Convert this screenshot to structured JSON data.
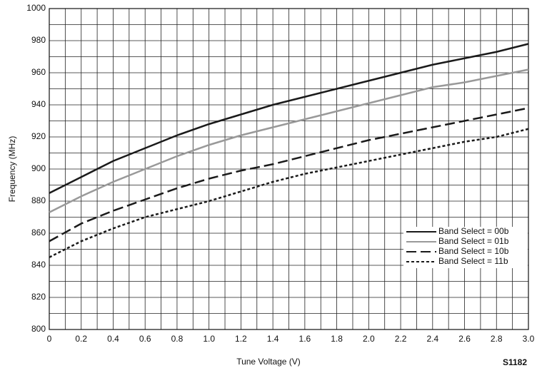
{
  "chart_data": {
    "type": "line",
    "x_label": "Tune Voltage (V)",
    "y_label": "Frequency (MHz)",
    "figure_id": "S1182",
    "x": [
      0,
      0.2,
      0.4,
      0.6,
      0.8,
      1.0,
      1.2,
      1.4,
      1.6,
      1.8,
      2.0,
      2.2,
      2.4,
      2.6,
      2.8,
      3.0
    ],
    "series": [
      {
        "name": "Band Select = 00b",
        "color": "#1a1a1a",
        "dash": "solid",
        "values": [
          885,
          895,
          905,
          913,
          921,
          928,
          934,
          940,
          945,
          950,
          955,
          960,
          965,
          969,
          973,
          978
        ]
      },
      {
        "name": "Band Select = 01b",
        "color": "#999999",
        "dash": "solid",
        "values": [
          873,
          883,
          892,
          900,
          908,
          915,
          921,
          926,
          931,
          936,
          941,
          946,
          951,
          954,
          958,
          962
        ]
      },
      {
        "name": "Band Select = 10b",
        "color": "#1a1a1a",
        "dash": "dashed",
        "values": [
          855,
          866,
          874,
          881,
          888,
          894,
          899,
          903,
          908,
          913,
          918,
          922,
          926,
          930,
          934,
          938
        ]
      },
      {
        "name": "Band Select = 11b",
        "color": "#1a1a1a",
        "dash": "dotted",
        "values": [
          845,
          855,
          863,
          870,
          875,
          880,
          886,
          892,
          897,
          901,
          905,
          909,
          913,
          917,
          920,
          925
        ]
      }
    ],
    "xlim": [
      0,
      3.0
    ],
    "ylim": [
      800,
      1000
    ],
    "xticks": [
      0,
      0.2,
      0.4,
      0.6,
      0.8,
      {
        "value": 1,
        "label": "1.0"
      },
      1.2,
      1.4,
      1.6,
      1.8,
      {
        "value": 2,
        "label": "2.0"
      },
      2.2,
      2.4,
      2.6,
      2.8,
      {
        "value": 3,
        "label": "3.0"
      }
    ],
    "yticks": [
      800,
      820,
      840,
      860,
      880,
      900,
      920,
      940,
      960,
      980,
      1000
    ],
    "grid": true,
    "x_grid_step": 0.1,
    "y_grid_step": 10,
    "legend": "right"
  }
}
